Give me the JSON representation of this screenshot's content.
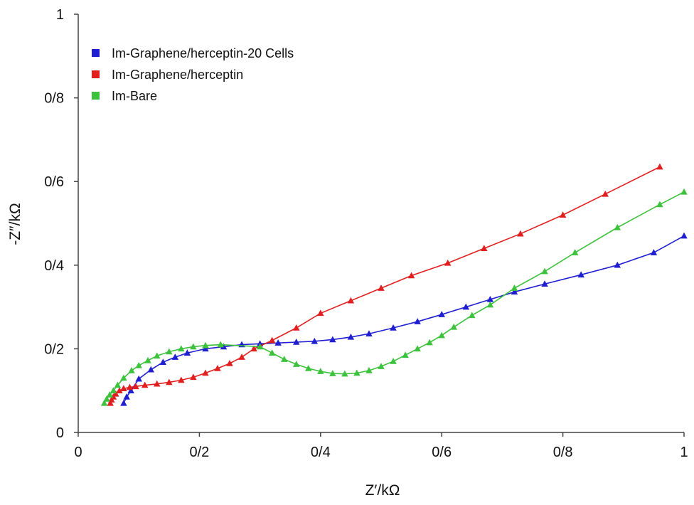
{
  "chart_data": {
    "type": "scatter",
    "title": "",
    "xlabel": "Z′/kΩ",
    "ylabel": "-Z″/kΩ",
    "xlim": [
      0,
      1
    ],
    "ylim": [
      0,
      1
    ],
    "x_ticks": [
      "0",
      "0/2",
      "0/4",
      "0/6",
      "0/8",
      "1"
    ],
    "y_ticks": [
      "0",
      "0/2",
      "0/4",
      "0/6",
      "0/8",
      "1"
    ],
    "grid": false,
    "legend_position": "top-left",
    "series": [
      {
        "name": "Im-Graphene/herceptin-20 Cells",
        "color": "#1f1fd1",
        "marker": "triangle",
        "x": [
          0.075,
          0.08,
          0.087,
          0.1,
          0.12,
          0.14,
          0.16,
          0.18,
          0.21,
          0.24,
          0.27,
          0.3,
          0.33,
          0.36,
          0.39,
          0.42,
          0.45,
          0.48,
          0.52,
          0.56,
          0.6,
          0.64,
          0.68,
          0.72,
          0.77,
          0.83,
          0.89,
          0.95,
          1.0
        ],
        "y": [
          0.07,
          0.085,
          0.1,
          0.128,
          0.15,
          0.168,
          0.18,
          0.19,
          0.2,
          0.205,
          0.21,
          0.212,
          0.214,
          0.216,
          0.218,
          0.222,
          0.228,
          0.236,
          0.25,
          0.265,
          0.282,
          0.3,
          0.318,
          0.336,
          0.355,
          0.377,
          0.4,
          0.43,
          0.47
        ]
      },
      {
        "name": "Im-Graphene/herceptin",
        "color": "#e21f1f",
        "marker": "triangle",
        "x": [
          0.053,
          0.055,
          0.058,
          0.062,
          0.068,
          0.075,
          0.085,
          0.095,
          0.11,
          0.13,
          0.15,
          0.17,
          0.19,
          0.21,
          0.23,
          0.25,
          0.27,
          0.29,
          0.32,
          0.36,
          0.4,
          0.45,
          0.5,
          0.55,
          0.61,
          0.67,
          0.73,
          0.8,
          0.87,
          0.96
        ],
        "y": [
          0.07,
          0.078,
          0.085,
          0.092,
          0.1,
          0.105,
          0.108,
          0.11,
          0.113,
          0.116,
          0.12,
          0.125,
          0.132,
          0.142,
          0.153,
          0.165,
          0.18,
          0.2,
          0.22,
          0.25,
          0.285,
          0.315,
          0.345,
          0.375,
          0.405,
          0.44,
          0.475,
          0.52,
          0.57,
          0.635
        ]
      },
      {
        "name": "Im-Bare",
        "color": "#3cc23c",
        "marker": "triangle",
        "x": [
          0.043,
          0.047,
          0.052,
          0.058,
          0.065,
          0.075,
          0.088,
          0.1,
          0.115,
          0.13,
          0.15,
          0.17,
          0.19,
          0.21,
          0.235,
          0.3,
          0.32,
          0.34,
          0.36,
          0.38,
          0.4,
          0.42,
          0.44,
          0.46,
          0.48,
          0.5,
          0.52,
          0.54,
          0.56,
          0.58,
          0.6,
          0.62,
          0.65,
          0.68,
          0.72,
          0.77,
          0.82,
          0.89,
          0.96,
          1.0
        ],
        "y": [
          0.07,
          0.08,
          0.09,
          0.1,
          0.113,
          0.13,
          0.148,
          0.16,
          0.172,
          0.183,
          0.193,
          0.2,
          0.205,
          0.208,
          0.21,
          0.205,
          0.19,
          0.175,
          0.163,
          0.153,
          0.146,
          0.141,
          0.14,
          0.142,
          0.148,
          0.158,
          0.17,
          0.185,
          0.2,
          0.215,
          0.232,
          0.252,
          0.28,
          0.305,
          0.345,
          0.385,
          0.43,
          0.49,
          0.545,
          0.575
        ]
      }
    ]
  }
}
